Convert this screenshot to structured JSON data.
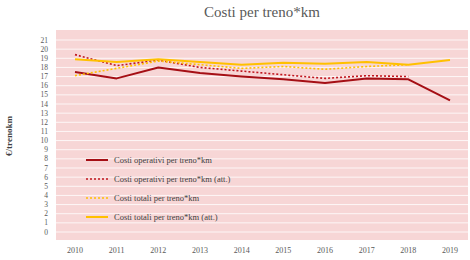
{
  "chart_data": {
    "type": "line",
    "title": "Costi per treno*km",
    "y_label": "€/trenokm",
    "categories": [
      "2010",
      "2011",
      "2012",
      "2013",
      "2014",
      "2015",
      "2016",
      "2017",
      "2018",
      "2019"
    ],
    "series": [
      {
        "name": "Costi operativi per treno*km",
        "color": "#a50f15",
        "line_style": "solid",
        "values": [
          17.5,
          16.8,
          18.0,
          17.4,
          17.0,
          16.7,
          16.3,
          16.8,
          16.7,
          14.4
        ]
      },
      {
        "name": "Costi operativi per treno*km (att.)",
        "color": "#c0161e",
        "line_style": "dotted",
        "values": [
          19.4,
          18.2,
          18.8,
          18.0,
          17.6,
          17.2,
          16.8,
          17.1,
          17.0,
          null
        ]
      },
      {
        "name": "Costi totali per treno*km",
        "color": "#ffc000",
        "line_style": "dotted",
        "values": [
          17.1,
          17.9,
          18.7,
          18.3,
          17.9,
          18.1,
          17.8,
          18.1,
          18.3,
          null
        ]
      },
      {
        "name": "Costi totali per treno*km (att.)",
        "color": "#ffc000",
        "line_style": "solid",
        "values": [
          18.9,
          18.6,
          18.9,
          18.6,
          18.3,
          18.5,
          18.4,
          18.6,
          18.3,
          18.8
        ]
      }
    ],
    "ylim": [
      0,
      21
    ],
    "yticks": [
      0,
      1,
      2,
      3,
      4,
      5,
      6,
      7,
      8,
      9,
      10,
      11,
      12,
      13,
      14,
      15,
      16,
      17,
      18,
      19,
      20,
      21
    ],
    "grid": true,
    "legend": "lower left"
  }
}
